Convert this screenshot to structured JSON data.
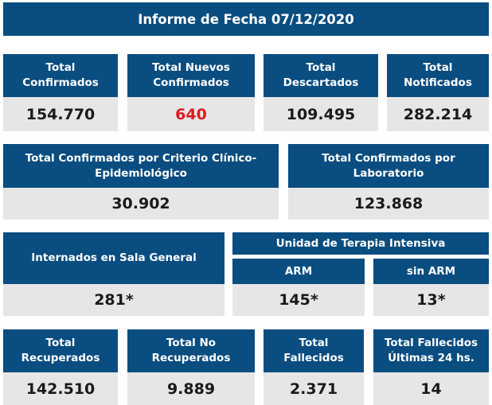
{
  "title": "Informe de Fecha 07/12/2020",
  "row1": [
    {
      "label": "Total Confirmados",
      "value": "154.770"
    },
    {
      "label": "Total Nuevos Confirmados",
      "value": "640"
    },
    {
      "label": "Total Descartados",
      "value": "109.495"
    },
    {
      "label": "Total Notificados",
      "value": "282.214"
    }
  ],
  "row2": [
    {
      "label": "Total Confirmados por Criterio Clínico-Epidemiológico",
      "value": "30.902"
    },
    {
      "label": "Total Confirmados por Laboratorio",
      "value": "123.868"
    }
  ],
  "row3": {
    "sala_general": {
      "label": "Internados en Sala General",
      "value": "281*"
    },
    "uti_label": "Unidad de Terapia Intensiva",
    "arm": {
      "label": "ARM",
      "value": "145*"
    },
    "sin_arm": {
      "label": "sin ARM",
      "value": "13*"
    }
  },
  "row4": [
    {
      "label": "Total Recuperados",
      "value": "142.510"
    },
    {
      "label": "Total No Recuperados",
      "value": "9.889"
    },
    {
      "label": "Total Fallecidos",
      "value": "2.371"
    },
    {
      "label": "Total Fallecidos Últimas 24 hs.",
      "value": "14"
    }
  ],
  "colors": {
    "header": "#0a4d80",
    "value_bg": "#e6e6e6",
    "highlight": "#e0191c"
  }
}
